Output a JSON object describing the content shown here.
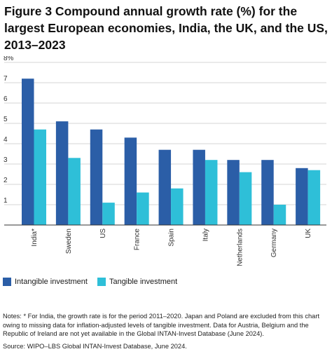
{
  "title": "Figure 3 Compound annual growth rate (%) for the largest European economies, India, the UK, and the US, 2013–2023",
  "legend": {
    "intangible_label": "Intangible investment",
    "tangible_label": "Tangible investment"
  },
  "notes": "Notes: * For India, the growth rate is for the period 2011–2020. Japan and Poland are excluded from this chart owing to missing data for inflation-adjusted levels of tangible investment. Data for Austria, Belgium and the Republic of Ireland are not yet available in the Global INTAN-Invest Database (June 2024).",
  "source": "Source: WIPO–LBS Global INTAN-Invest Database, June 2024.",
  "colors": {
    "intangible": "#2b5ea7",
    "tangible": "#2ebfd8",
    "grid": "#d6d6d6",
    "axis": "#333333"
  },
  "chart_data": {
    "type": "bar",
    "categories": [
      "India*",
      "Sweden",
      "US",
      "France",
      "Spain",
      "Italy",
      "Netherlands",
      "Germany",
      "UK"
    ],
    "series": [
      {
        "name": "Intangible investment",
        "values": [
          7.2,
          5.1,
          4.7,
          4.3,
          3.7,
          3.7,
          3.2,
          3.2,
          2.8
        ]
      },
      {
        "name": "Tangible investment",
        "values": [
          4.7,
          3.3,
          1.1,
          1.6,
          1.8,
          3.2,
          2.6,
          1.0,
          2.7
        ]
      }
    ],
    "ylim": [
      0,
      8
    ],
    "yticks": [
      "",
      "1",
      "2",
      "3",
      "4",
      "5",
      "6",
      "7",
      "8%"
    ],
    "grid": true,
    "legend_position": "bottom-left"
  }
}
